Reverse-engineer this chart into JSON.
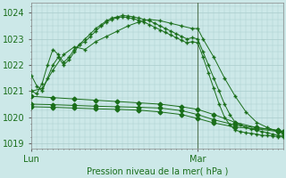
{
  "xlabel": "Pression niveau de la mer( hPa )",
  "bg_color": "#cce8e8",
  "grid_color": "#aacccc",
  "line_color": "#1a6e1a",
  "ylim": [
    1018.8,
    1024.4
  ],
  "xlim": [
    0,
    47
  ],
  "mar_x": 31,
  "xtick_labels": [
    "Lun",
    "Mar"
  ],
  "xtick_positions": [
    0,
    31
  ],
  "ytick_positions": [
    1019,
    1020,
    1021,
    1022,
    1023,
    1024
  ],
  "series": [
    {
      "x": [
        0,
        1,
        2,
        3,
        4,
        5,
        6,
        7,
        8,
        9,
        10,
        11,
        12,
        13,
        14,
        15,
        16,
        17,
        18,
        19,
        20,
        21,
        22,
        23,
        24,
        25,
        26,
        27,
        28,
        29,
        30,
        31,
        32,
        33,
        34,
        35,
        36,
        37,
        38,
        39,
        40,
        41,
        42,
        43,
        44,
        45,
        46,
        47
      ],
      "y": [
        1021.6,
        1021.2,
        1021.0,
        1021.5,
        1022.0,
        1022.3,
        1022.0,
        1022.2,
        1022.5,
        1022.8,
        1023.0,
        1023.2,
        1023.4,
        1023.55,
        1023.7,
        1023.8,
        1023.85,
        1023.9,
        1023.88,
        1023.85,
        1023.8,
        1023.75,
        1023.7,
        1023.6,
        1023.5,
        1023.4,
        1023.3,
        1023.2,
        1023.1,
        1023.0,
        1023.05,
        1023.0,
        1022.5,
        1022.0,
        1021.5,
        1021.0,
        1020.5,
        1020.1,
        1019.8,
        1019.7,
        1019.6,
        1019.55,
        1019.5,
        1019.45,
        1019.4,
        1019.35,
        1019.3,
        1019.3
      ],
      "marker": "+",
      "ms": 3
    },
    {
      "x": [
        0,
        1,
        2,
        3,
        4,
        5,
        6,
        7,
        8,
        9,
        10,
        11,
        12,
        13,
        14,
        15,
        16,
        17,
        18,
        19,
        20,
        21,
        22,
        23,
        24,
        25,
        26,
        27,
        28,
        29,
        30,
        31,
        32,
        33,
        34,
        35,
        36,
        37,
        38,
        39,
        40,
        41,
        42,
        43,
        44,
        45,
        46,
        47
      ],
      "y": [
        1021.0,
        1020.9,
        1021.3,
        1022.0,
        1022.6,
        1022.4,
        1022.1,
        1022.3,
        1022.6,
        1022.8,
        1022.9,
        1023.1,
        1023.3,
        1023.5,
        1023.65,
        1023.75,
        1023.82,
        1023.85,
        1023.82,
        1023.78,
        1023.72,
        1023.65,
        1023.55,
        1023.45,
        1023.35,
        1023.25,
        1023.15,
        1023.05,
        1022.95,
        1022.85,
        1022.9,
        1022.85,
        1022.3,
        1021.7,
        1021.1,
        1020.5,
        1020.0,
        1019.7,
        1019.5,
        1019.45,
        1019.4,
        1019.38,
        1019.35,
        1019.3,
        1019.3,
        1019.28,
        1019.25,
        1019.25
      ],
      "marker": "+",
      "ms": 3
    },
    {
      "x": [
        0,
        2,
        4,
        6,
        8,
        10,
        12,
        14,
        16,
        18,
        20,
        22,
        24,
        26,
        28,
        30,
        31,
        32,
        34,
        36,
        38,
        40,
        42,
        44,
        46,
        47
      ],
      "y": [
        1021.0,
        1021.1,
        1021.8,
        1022.4,
        1022.7,
        1022.6,
        1022.9,
        1023.1,
        1023.3,
        1023.5,
        1023.65,
        1023.75,
        1023.7,
        1023.6,
        1023.5,
        1023.4,
        1023.4,
        1023.0,
        1022.3,
        1021.5,
        1020.8,
        1020.2,
        1019.8,
        1019.6,
        1019.45,
        1019.4
      ],
      "marker": "+",
      "ms": 3
    },
    {
      "x": [
        0,
        4,
        8,
        12,
        16,
        20,
        24,
        28,
        31,
        34,
        38,
        42,
        46,
        47
      ],
      "y": [
        1020.8,
        1020.75,
        1020.7,
        1020.65,
        1020.6,
        1020.55,
        1020.5,
        1020.4,
        1020.3,
        1020.1,
        1019.8,
        1019.6,
        1019.5,
        1019.45
      ],
      "marker": "D",
      "ms": 2.5
    },
    {
      "x": [
        0,
        4,
        8,
        12,
        16,
        20,
        24,
        28,
        31,
        34,
        38,
        42,
        46,
        47
      ],
      "y": [
        1020.5,
        1020.48,
        1020.45,
        1020.42,
        1020.4,
        1020.38,
        1020.35,
        1020.25,
        1020.1,
        1019.9,
        1019.7,
        1019.6,
        1019.48,
        1019.43
      ],
      "marker": "D",
      "ms": 2.5
    },
    {
      "x": [
        0,
        4,
        8,
        12,
        16,
        20,
        24,
        28,
        31,
        34,
        38,
        42,
        46,
        47
      ],
      "y": [
        1020.4,
        1020.38,
        1020.35,
        1020.32,
        1020.3,
        1020.27,
        1020.2,
        1020.1,
        1019.95,
        1019.78,
        1019.62,
        1019.55,
        1019.45,
        1019.4
      ],
      "marker": "D",
      "ms": 2.5
    }
  ]
}
